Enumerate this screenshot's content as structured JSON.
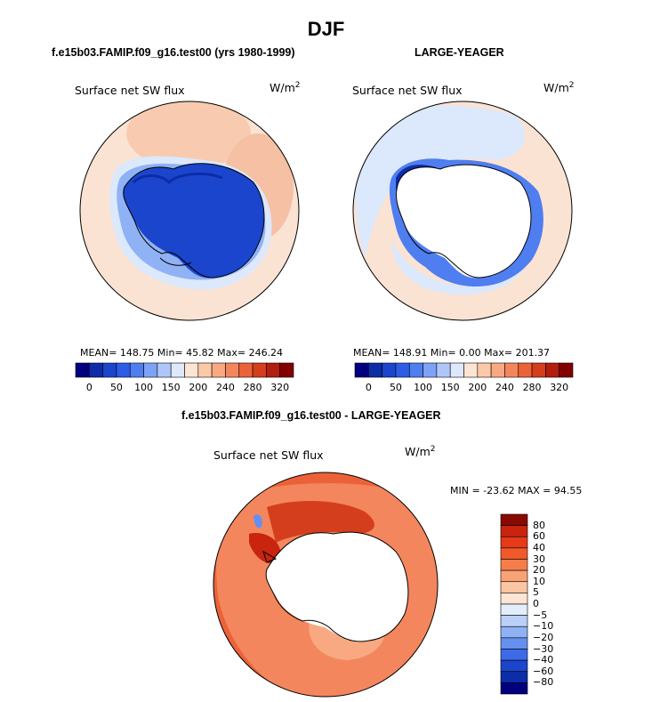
{
  "figure": {
    "title": "DJF",
    "left_panel_title": "f.e15b03.FAMIP.f09_g16.test00 (yrs 1980-1999)",
    "right_panel_title": "LARGE-YEAGER",
    "diff_panel_title": "f.e15b03.FAMIP.f09_g16.test00 - LARGE-YEAGER"
  },
  "panels": {
    "left": {
      "variable": "Surface net SW flux",
      "unit": "W/m",
      "unit_exp": "2",
      "stats": "MEAN= 148.75   Min=   45.82   Max= 246.24"
    },
    "right": {
      "variable": "Surface net SW flux",
      "unit": "W/m",
      "unit_exp": "2",
      "stats": "MEAN= 148.91   Min=    0.00   Max= 201.37"
    },
    "diff": {
      "variable": "Surface net SW flux",
      "unit": "W/m",
      "unit_exp": "2",
      "stats": "MIN = -23.62  MAX =   94.55"
    }
  },
  "colorbar_top": {
    "labels": [
      "0",
      "50",
      "100",
      "150",
      "200",
      "240",
      "280",
      "320"
    ],
    "colors": [
      "#00007f",
      "#0d2ca8",
      "#1b45cc",
      "#2d5de6",
      "#4f7ef0",
      "#7ea2f5",
      "#aec6f8",
      "#dde9fb",
      "#fde5d3",
      "#fbc9a8",
      "#f8a982",
      "#f4865d",
      "#ec6238",
      "#d53e1c",
      "#b21e0f",
      "#820000"
    ]
  },
  "colorbar_diff": {
    "labels": [
      "80",
      "60",
      "40",
      "30",
      "20",
      "10",
      "5",
      "0",
      "−5",
      "−10",
      "−20",
      "−30",
      "−40",
      "−60",
      "−80"
    ],
    "colors": [
      "#8a0a02",
      "#c8240e",
      "#e63a18",
      "#f05a2a",
      "#f57d4c",
      "#f9a276",
      "#fcc5a2",
      "#fde5d3",
      "#e4eefb",
      "#b9d0f8",
      "#8fb2f4",
      "#6690ef",
      "#3d6be8",
      "#1b45cc",
      "#0d2ca8",
      "#00007f"
    ]
  }
}
